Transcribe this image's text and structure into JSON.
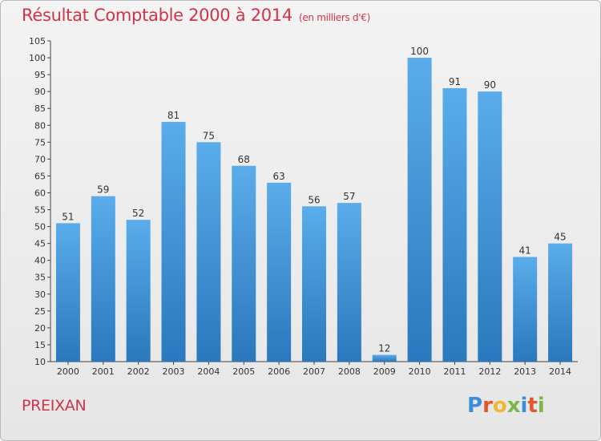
{
  "header": {
    "title": "Résultat Comptable 2000 à 2014",
    "subtitle": "(en milliers d'€)"
  },
  "footer": {
    "town": "PREIXAN",
    "logo_text": "Proxiti",
    "logo_colors": [
      "#3a8fd8",
      "#e4572e",
      "#f2b632",
      "#7ab648",
      "#3a8fd8",
      "#e4572e",
      "#7ab648"
    ]
  },
  "chart_data": {
    "type": "bar",
    "title": "Résultat Comptable 2000 à 2014",
    "subtitle": "(en milliers d'€)",
    "categories": [
      "2000",
      "2001",
      "2002",
      "2003",
      "2004",
      "2005",
      "2006",
      "2007",
      "2008",
      "2009",
      "2010",
      "2011",
      "2012",
      "2013",
      "2014"
    ],
    "values": [
      51,
      59,
      52,
      81,
      75,
      68,
      63,
      56,
      57,
      12,
      100,
      91,
      90,
      41,
      45
    ],
    "ylim": [
      10,
      105
    ],
    "ytick_step": 5,
    "grid": false,
    "bar_color_top": "#5aacea",
    "bar_color_bottom": "#2a78bd"
  }
}
